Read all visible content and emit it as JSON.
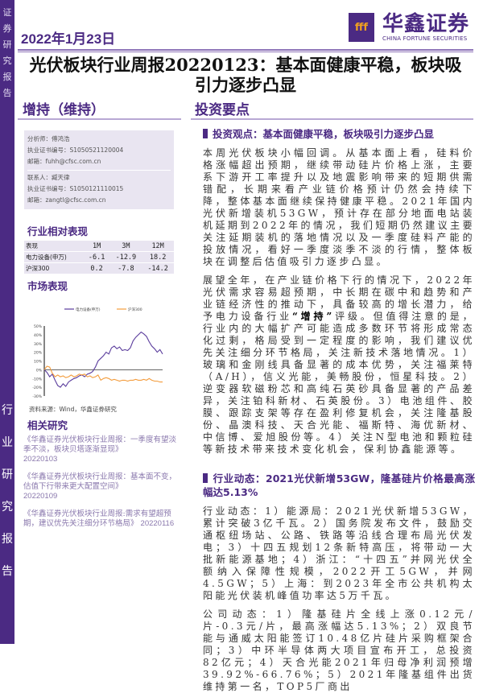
{
  "sidebar": {
    "top_vertical": [
      "证",
      "券",
      "研",
      "究",
      "报",
      "告"
    ],
    "bottom_vertical": [
      "行",
      "业",
      "研",
      "究",
      "报",
      "告"
    ]
  },
  "header": {
    "date": "2022年1月23日",
    "logo_cn": "华鑫证券",
    "logo_en": "CHINA FORTUNE SECURITIES",
    "logo_mark": "fff"
  },
  "title": "光伏板块行业周报20220123：基本面健康平稳，板块吸引力逐步凸显",
  "rating": "增持（维持）",
  "section_title": "投资要点",
  "analysts": [
    {
      "role": "分析师：傅鸿浩",
      "cert": "执业证书编号：S1050521120004",
      "email": "邮箱：fuhh@cfsc.com.cn"
    },
    {
      "role": "联系人：臧天律",
      "cert": "执业证书编号：S1050121110015",
      "email": "邮箱：zangtl@cfsc.com.cn"
    }
  ],
  "performance": {
    "title": "行业相对表现",
    "headers": [
      "表现",
      "1M",
      "3M",
      "12M"
    ],
    "rows": [
      [
        "电力设备(申万)",
        "-6.1",
        "-12.9",
        "18.2"
      ],
      [
        "沪深300",
        "0.2",
        "-7.8",
        "-14.2"
      ]
    ]
  },
  "market": {
    "title": "市场表现",
    "source": "资料来源：Wind，华鑫证券研究"
  },
  "chart_data": {
    "type": "line",
    "ylim": [
      -30,
      50
    ],
    "yticks": [
      "50%",
      "40%",
      "30%",
      "20%",
      "10%",
      "0%",
      "-10%",
      "-20%",
      "-30%"
    ],
    "legend_position": "top",
    "series": [
      {
        "name": "电力设备(申万)",
        "color": "#5a3c9c",
        "values": [
          0,
          -3,
          -8,
          -5,
          -12,
          -18,
          -20,
          -16,
          -19,
          -14,
          -12,
          -10,
          -9,
          -7,
          -6,
          -8,
          -5,
          -4,
          -2,
          3,
          10,
          13,
          16,
          20,
          18,
          25,
          27,
          24,
          26,
          22,
          23,
          22,
          25,
          33,
          37,
          40,
          43,
          41,
          38,
          32,
          27,
          24,
          20,
          23,
          18
        ]
      },
      {
        "name": "沪深300",
        "color": "#f39c3c",
        "values": [
          0,
          4,
          3,
          -4,
          -8,
          -6,
          -8,
          -7,
          -9,
          -8,
          -6,
          -8,
          -7,
          -5,
          -6,
          -5,
          -8,
          -7,
          -9,
          -8,
          -6,
          -12,
          -10,
          -9,
          -10,
          -12,
          -11,
          -12,
          -13,
          -12,
          -12,
          -13,
          -12,
          -12,
          -11,
          -12,
          -12,
          -11,
          -12,
          -10,
          -12,
          -13,
          -13,
          -14,
          -14
        ]
      }
    ]
  },
  "related": {
    "title": "相关研究",
    "items": [
      {
        "text": "《华鑫证券光伏板块行业周报：一季度有望淡季不淡，板块贝塔逐渐显现》",
        "date": "20220103"
      },
      {
        "text": "《华鑫证券光伏板块行业周报：基本面不变，估值下行带来更大配置空间》",
        "date": "20220109"
      },
      {
        "text": "《华鑫证券光伏板块行业周报:需求有望超预期，建议优先关注细分环节格局》",
        "date": "20220116"
      }
    ]
  },
  "main": {
    "heading1": "投资观点：基本面健康平稳，板块吸引力逐步凸显",
    "para1": "本周光伏板块小幅回调。从基本面上看，硅料价格涨幅超出预期，继续带动硅片价格上涨，主要系下游开工率提升以及地震影响带来的短期供需错配，长期来看产业链价格预计仍然会持续下降，整体基本面继续保持健康平稳。2021年国内光伏新增装机53GW，预计存在部分地面电站装机延期到2022年的情况，我们短期仍然建议主要关注延期装机的落地情况以及一季度硅料产能的投放情况，看好一季度淡季不淡的行情，整体板块在调整后估值吸引力逐步凸显。",
    "para2a": "展望全年，在产业链价格下行的情况下，2022年光伏需求容易超预期，中长期在碳中和趋势和产业链经济性的推动下，具备较高的增长潜力，给予电力设备行业",
    "para2b": "“增持”",
    "para2c": "评级。但值得注意的是，行业内的大幅扩产可能造成多数环节将形成常态化过剩，格局受到一定程度的影响，我们建议优先关注细分环节格局，关注新技术落地情况。1）玻璃和金刚线具备显著的成本优势，关注福莱特（A/H），信义光能，美畅股份，恒星科技。2）逆变器软磁粉芯和高纯石英砂具备显著的产品差异，关注铂科新材、石英股份。3）电池组件、胶膜、跟踪支架等存在盈利修复机会，关注隆基股份、晶澳科技、天合光能、福斯特、海优新材、中信博、爱旭股份等。4）关注N型电池和颗粒硅等新技术带来技术变化机会，保利协鑫能源等。",
    "heading2": "行业动态：2021光伏新增53GW，隆基硅片价格最高涨幅达5.13%",
    "para3": "行业动态：1）能源局：2021光伏新增53GW，累计突破3亿千瓦。2）国务院发布文件，鼓励交通枢纽场站、公路、铁路等沿线合理布局光伏发电；3）十四五规划12条新特高压，将带动一大批新能源基地；4）浙江：“十四五”并网光伏全额纳入保障性规模，2022开工5GW，并网4.5GW；5）上海：到2023年全市公共机构太阳能光伏装机峰值功率达5万千瓦。",
    "para4": "公司动态：1）隆基硅片全线上涨0.12元/片-0.3元/片，最高涨幅达5.13%；2）双良节能与通威太阳能签订10.48亿片硅片采购框架合同；3）中环半导体两大项目宣布开工，总投资82亿元；4）天合光能2021年归母净利润预增39.92%-66.76%；5）2021年隆基组件出货维持第一名，TOP5厂商出"
  }
}
